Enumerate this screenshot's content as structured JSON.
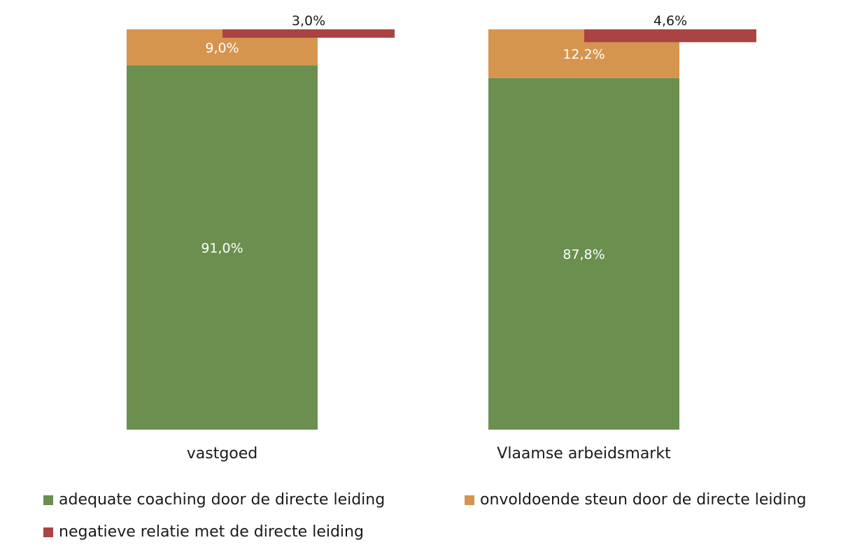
{
  "chart_data": {
    "type": "bar",
    "stacked": true,
    "categories": [
      "vastgoed",
      "Vlaamse arbeidsmarkt"
    ],
    "series": [
      {
        "name": "adequate coaching door de directe leiding",
        "color": "#6a8f4f",
        "values": [
          91.0,
          87.8
        ],
        "labels": [
          "91,0%",
          "87,8%"
        ]
      },
      {
        "name": "onvoldoende steun door de directe leiding",
        "color": "#d5954e",
        "values": [
          9.0,
          12.2
        ],
        "labels": [
          "9,0%",
          "12,2%"
        ]
      },
      {
        "name": "negatieve relatie met de directe leiding",
        "color": "#a94443",
        "values": [
          3.0,
          4.6
        ],
        "labels": [
          "3,0%",
          "4,6%"
        ]
      }
    ],
    "ylim": [
      0,
      100
    ],
    "grid": false,
    "legend_position": "bottom"
  }
}
